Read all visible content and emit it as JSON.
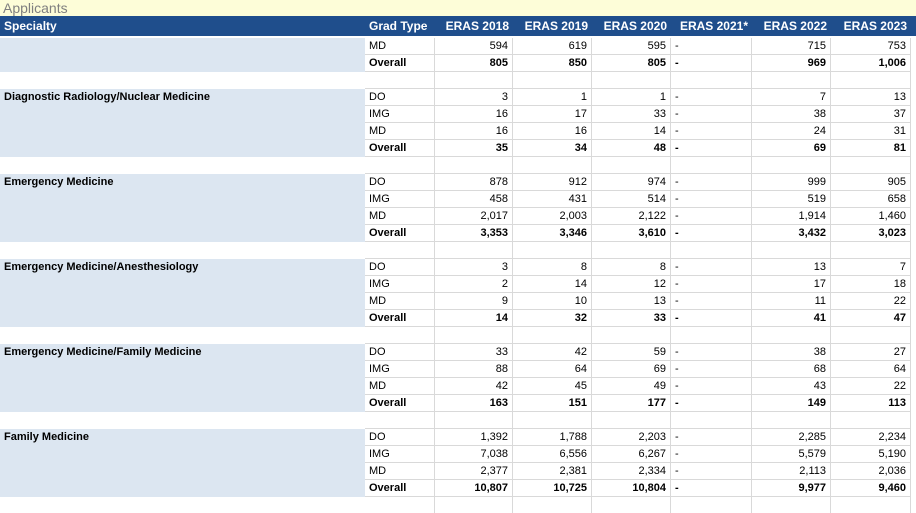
{
  "title": "Applicants",
  "header": [
    "Specialty",
    "Grad Type",
    "ERAS 2018",
    "ERAS 2019",
    "ERAS 2020",
    "ERAS 2021*",
    "ERAS 2022",
    "ERAS 2023"
  ],
  "groups": [
    {
      "rows": [
        {
          "grad_type": "MD",
          "values": [
            "594",
            "619",
            "595",
            "-",
            "715",
            "753"
          ]
        },
        {
          "grad_type": "Overall",
          "values": [
            "805",
            "850",
            "805",
            "-",
            "969",
            "1,006"
          ]
        }
      ]
    },
    {
      "specialty": "Diagnostic Radiology/Nuclear Medicine",
      "rows": [
        {
          "grad_type": "DO",
          "values": [
            "3",
            "1",
            "1",
            "-",
            "7",
            "13"
          ]
        },
        {
          "grad_type": "IMG",
          "values": [
            "16",
            "17",
            "33",
            "-",
            "38",
            "37"
          ]
        },
        {
          "grad_type": "MD",
          "values": [
            "16",
            "16",
            "14",
            "-",
            "24",
            "31"
          ]
        },
        {
          "grad_type": "Overall",
          "values": [
            "35",
            "34",
            "48",
            "-",
            "69",
            "81"
          ]
        }
      ]
    },
    {
      "specialty": "Emergency Medicine",
      "rows": [
        {
          "grad_type": "DO",
          "values": [
            "878",
            "912",
            "974",
            "-",
            "999",
            "905"
          ]
        },
        {
          "grad_type": "IMG",
          "values": [
            "458",
            "431",
            "514",
            "-",
            "519",
            "658"
          ]
        },
        {
          "grad_type": "MD",
          "values": [
            "2,017",
            "2,003",
            "2,122",
            "-",
            "1,914",
            "1,460"
          ]
        },
        {
          "grad_type": "Overall",
          "values": [
            "3,353",
            "3,346",
            "3,610",
            "-",
            "3,432",
            "3,023"
          ]
        }
      ]
    },
    {
      "specialty": "Emergency Medicine/Anesthesiology",
      "rows": [
        {
          "grad_type": "DO",
          "values": [
            "3",
            "8",
            "8",
            "-",
            "13",
            "7"
          ]
        },
        {
          "grad_type": "IMG",
          "values": [
            "2",
            "14",
            "12",
            "-",
            "17",
            "18"
          ]
        },
        {
          "grad_type": "MD",
          "values": [
            "9",
            "10",
            "13",
            "-",
            "11",
            "22"
          ]
        },
        {
          "grad_type": "Overall",
          "values": [
            "14",
            "32",
            "33",
            "-",
            "41",
            "47"
          ]
        }
      ]
    },
    {
      "specialty": "Emergency Medicine/Family Medicine",
      "rows": [
        {
          "grad_type": "DO",
          "values": [
            "33",
            "42",
            "59",
            "-",
            "38",
            "27"
          ]
        },
        {
          "grad_type": "IMG",
          "values": [
            "88",
            "64",
            "69",
            "-",
            "68",
            "64"
          ]
        },
        {
          "grad_type": "MD",
          "values": [
            "42",
            "45",
            "49",
            "-",
            "43",
            "22"
          ]
        },
        {
          "grad_type": "Overall",
          "values": [
            "163",
            "151",
            "177",
            "-",
            "149",
            "113"
          ]
        }
      ]
    },
    {
      "specialty": "Family Medicine",
      "rows": [
        {
          "grad_type": "DO",
          "values": [
            "1,392",
            "1,788",
            "2,203",
            "-",
            "2,285",
            "2,234"
          ]
        },
        {
          "grad_type": "IMG",
          "values": [
            "7,038",
            "6,556",
            "6,267",
            "-",
            "5,579",
            "5,190"
          ]
        },
        {
          "grad_type": "MD",
          "values": [
            "2,377",
            "2,381",
            "2,334",
            "-",
            "2,113",
            "2,036"
          ]
        },
        {
          "grad_type": "Overall",
          "values": [
            "10,807",
            "10,725",
            "10,804",
            "-",
            "9,977",
            "9,460"
          ]
        }
      ]
    }
  ]
}
